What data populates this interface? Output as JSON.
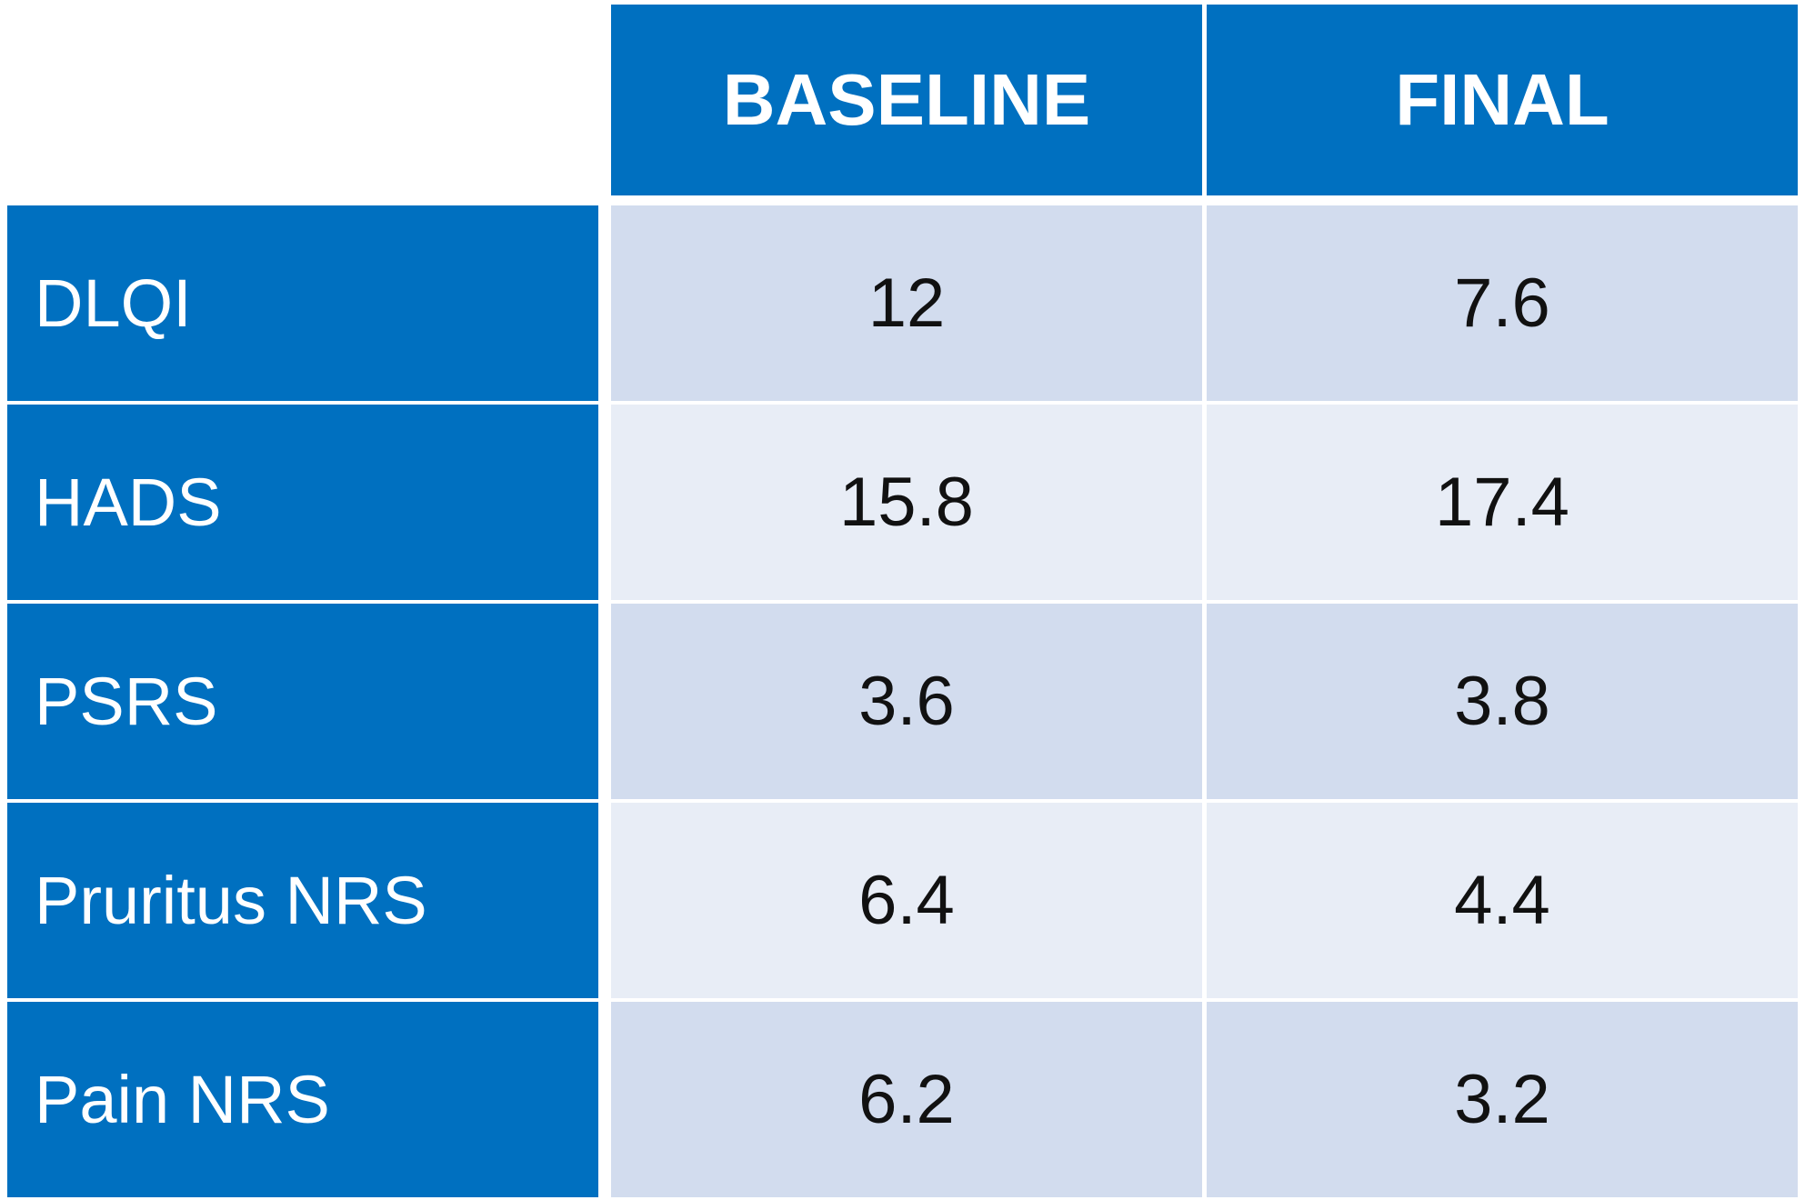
{
  "chart_data": {
    "type": "table",
    "columns": [
      "BASELINE",
      "FINAL"
    ],
    "rows": [
      {
        "label": "DLQI",
        "values": [
          "12",
          "7.6"
        ]
      },
      {
        "label": "HADS",
        "values": [
          "15.8",
          "17.4"
        ]
      },
      {
        "label": "PSRS",
        "values": [
          "3.6",
          "3.8"
        ]
      },
      {
        "label": "Pruritus NRS",
        "values": [
          "6.4",
          "4.4"
        ]
      },
      {
        "label": "Pain NRS",
        "values": [
          "6.2",
          "3.2"
        ]
      }
    ]
  },
  "colors": {
    "header_blue": "#0070c0",
    "band_dark": "#d2dcee",
    "band_light": "#e8edf6",
    "header_text": "#ffffff",
    "value_text": "#111111"
  }
}
